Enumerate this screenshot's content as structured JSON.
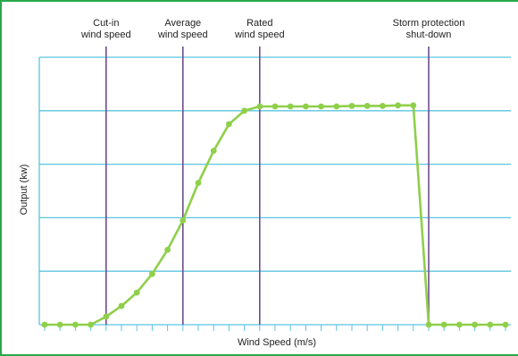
{
  "chart_data": {
    "type": "line",
    "title": "",
    "xlabel": "Wind Speed (m/s)",
    "ylabel": "Output (kw)",
    "xlim": [
      0,
      30
    ],
    "ylim": [
      0,
      5
    ],
    "grid": true,
    "colors": {
      "grid": "#5bc5e0",
      "series": "#8fcf4a",
      "markers": "#6e4d8e",
      "border": "#2aa84a"
    },
    "annotations": [
      {
        "lines": [
          "Cut-in",
          "wind speed"
        ],
        "x": 4
      },
      {
        "lines": [
          "Average",
          "wind speed"
        ],
        "x": 9
      },
      {
        "lines": [
          "Rated",
          "wind speed"
        ],
        "x": 14
      },
      {
        "lines": [
          "Storm protection",
          "shut-down"
        ],
        "x": 25
      }
    ],
    "series": [
      {
        "x": [
          0,
          1,
          2,
          3,
          4,
          5,
          6,
          7,
          8,
          9,
          10,
          11,
          12,
          13,
          14,
          15,
          16,
          17,
          18,
          19,
          20,
          21,
          22,
          23,
          24,
          25,
          26,
          27,
          28,
          29,
          30
        ],
        "values": [
          0,
          0,
          0,
          0,
          0.15,
          0.35,
          0.6,
          0.95,
          1.4,
          1.95,
          2.65,
          3.25,
          3.75,
          4.0,
          4.08,
          4.08,
          4.08,
          4.08,
          4.08,
          4.08,
          4.09,
          4.09,
          4.09,
          4.1,
          4.1,
          0,
          0,
          0,
          0,
          0,
          0
        ]
      }
    ]
  }
}
